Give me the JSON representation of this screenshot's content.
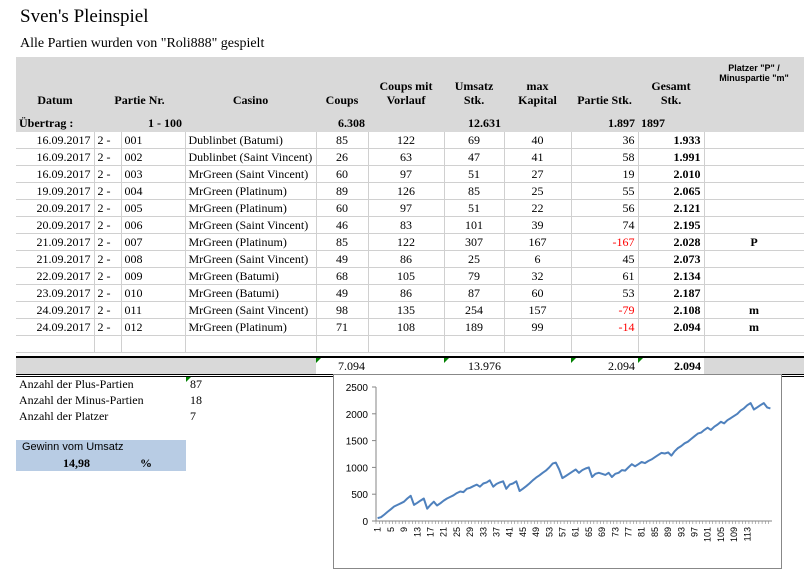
{
  "title": "Sven's Pleinspiel",
  "subtitle": "Alle Partien wurden von \"Roli888\" gespielt",
  "headers": {
    "datum": "Datum",
    "partie_nr": "Partie Nr.",
    "casino": "Casino",
    "coups": "Coups",
    "coups_mit_vorlauf": "Coups mit Vorlauf",
    "umsatz_stk": "Umsatz Stk.",
    "max_kapital": "max Kapital",
    "partie_stk": "Partie Stk.",
    "gesamt_stk": "Gesamt Stk.",
    "platzer": "Platzer \"P\" / Minuspartie \"m\""
  },
  "uebertrag": {
    "label": "Übertrag :",
    "partie_range": "1 - 100",
    "coups": "6.308",
    "umsatz": "12.631",
    "partie_stk": "1.897",
    "gesamt": "1897"
  },
  "rows": [
    {
      "datum": "16.09.2017",
      "nr_a": "2 -",
      "nr_b": "001",
      "casino": "Dublinbet (Batumi)",
      "coups": "85",
      "vorlauf": "122",
      "umsatz": "69",
      "kapital": "40",
      "partie": "36",
      "gesamt": "1.933",
      "platzer": ""
    },
    {
      "datum": "16.09.2017",
      "nr_a": "2 -",
      "nr_b": "002",
      "casino": "Dublinbet (Saint Vincent)",
      "coups": "26",
      "vorlauf": "63",
      "umsatz": "47",
      "kapital": "41",
      "partie": "58",
      "gesamt": "1.991",
      "platzer": ""
    },
    {
      "datum": "16.09.2017",
      "nr_a": "2 -",
      "nr_b": "003",
      "casino": "MrGreen (Saint Vincent)",
      "coups": "60",
      "vorlauf": "97",
      "umsatz": "51",
      "kapital": "27",
      "partie": "19",
      "gesamt": "2.010",
      "platzer": ""
    },
    {
      "datum": "19.09.2017",
      "nr_a": "2 -",
      "nr_b": "004",
      "casino": "MrGreen (Platinum)",
      "coups": "89",
      "vorlauf": "126",
      "umsatz": "85",
      "kapital": "25",
      "partie": "55",
      "gesamt": "2.065",
      "platzer": ""
    },
    {
      "datum": "20.09.2017",
      "nr_a": "2 -",
      "nr_b": "005",
      "casino": "MrGreen (Platinum)",
      "coups": "60",
      "vorlauf": "97",
      "umsatz": "51",
      "kapital": "22",
      "partie": "56",
      "gesamt": "2.121",
      "platzer": ""
    },
    {
      "datum": "20.09.2017",
      "nr_a": "2 -",
      "nr_b": "006",
      "casino": "MrGreen (Saint Vincent)",
      "coups": "46",
      "vorlauf": "83",
      "umsatz": "101",
      "kapital": "39",
      "partie": "74",
      "gesamt": "2.195",
      "platzer": ""
    },
    {
      "datum": "21.09.2017",
      "nr_a": "2 -",
      "nr_b": "007",
      "casino": "MrGreen (Platinum)",
      "coups": "85",
      "vorlauf": "122",
      "umsatz": "307",
      "kapital": "167",
      "partie": "-167",
      "gesamt": "2.028",
      "platzer": "P"
    },
    {
      "datum": "21.09.2017",
      "nr_a": "2 -",
      "nr_b": "008",
      "casino": "MrGreen (Saint Vincent)",
      "coups": "49",
      "vorlauf": "86",
      "umsatz": "25",
      "kapital": "6",
      "partie": "45",
      "gesamt": "2.073",
      "platzer": ""
    },
    {
      "datum": "22.09.2017",
      "nr_a": "2 -",
      "nr_b": "009",
      "casino": "MrGreen (Batumi)",
      "coups": "68",
      "vorlauf": "105",
      "umsatz": "79",
      "kapital": "32",
      "partie": "61",
      "gesamt": "2.134",
      "platzer": ""
    },
    {
      "datum": "23.09.2017",
      "nr_a": "2 -",
      "nr_b": "010",
      "casino": "MrGreen (Batumi)",
      "coups": "49",
      "vorlauf": "86",
      "umsatz": "87",
      "kapital": "60",
      "partie": "53",
      "gesamt": "2.187",
      "platzer": ""
    },
    {
      "datum": "24.09.2017",
      "nr_a": "2 -",
      "nr_b": "011",
      "casino": "MrGreen (Saint Vincent)",
      "coups": "98",
      "vorlauf": "135",
      "umsatz": "254",
      "kapital": "157",
      "partie": "-79",
      "gesamt": "2.108",
      "platzer": "m"
    },
    {
      "datum": "24.09.2017",
      "nr_a": "2 -",
      "nr_b": "012",
      "casino": "MrGreen (Platinum)",
      "coups": "71",
      "vorlauf": "108",
      "umsatz": "189",
      "kapital": "99",
      "partie": "-14",
      "gesamt": "2.094",
      "platzer": "m"
    }
  ],
  "totals": {
    "coups": "7.094",
    "umsatz": "13.976",
    "partie": "2.094",
    "gesamt": "2.094"
  },
  "stats": {
    "plus_label": "Anzahl der Plus-Partien",
    "plus_value": "87",
    "minus_label": "Anzahl der Minus-Partien",
    "minus_value": "18",
    "platzer_label": "Anzahl der Platzer",
    "platzer_value": "7"
  },
  "gewinn": {
    "label": "Gewinn vom Umsatz",
    "value": "14,98",
    "unit": "%"
  },
  "colors": {
    "header_gray": "#d9d9d9",
    "negative": "#ff0000",
    "gewinn_bg": "#b8cce4",
    "line": "#4f81bd",
    "comment_marker": "#008000"
  },
  "chart_data": {
    "type": "line",
    "title": "",
    "xlabel": "",
    "ylabel": "",
    "ylim": [
      0,
      2500
    ],
    "yticks": [
      0,
      500,
      1000,
      1500,
      2000,
      2500
    ],
    "xtick_labels": [
      "1",
      "5",
      "9",
      "13",
      "17",
      "21",
      "25",
      "29",
      "33",
      "37",
      "41",
      "45",
      "49",
      "53",
      "57",
      "61",
      "65",
      "69",
      "73",
      "77",
      "81",
      "85",
      "89",
      "93",
      "97",
      "101",
      "105",
      "109",
      "113"
    ],
    "grid": false,
    "legend": "none",
    "series": [
      {
        "values": [
          55,
          70,
          120,
          170,
          220,
          270,
          300,
          330,
          360,
          420,
          470,
          300,
          340,
          380,
          420,
          230,
          300,
          360,
          290,
          330,
          380,
          420,
          450,
          480,
          520,
          550,
          540,
          600,
          620,
          650,
          680,
          640,
          700,
          720,
          760,
          640,
          690,
          720,
          740,
          600,
          680,
          700,
          740,
          560,
          600,
          650,
          700,
          760,
          810,
          850,
          900,
          940,
          1000,
          1070,
          1090,
          960,
          800,
          840,
          880,
          920,
          960,
          900,
          950,
          980,
          1000,
          820,
          880,
          900,
          880,
          860,
          900,
          820,
          880,
          900,
          950,
          940,
          1000,
          1060,
          1020,
          1060,
          1100,
          1080,
          1120,
          1150,
          1190,
          1230,
          1270,
          1260,
          1280,
          1220,
          1300,
          1360,
          1400,
          1450,
          1480,
          1530,
          1580,
          1630,
          1650,
          1700,
          1740,
          1700,
          1760,
          1800,
          1850,
          1820,
          1880,
          1920,
          1960,
          2000,
          2060,
          2100,
          2160,
          2200,
          2080,
          2120,
          2160,
          2200,
          2120,
          2100
        ]
      }
    ]
  }
}
